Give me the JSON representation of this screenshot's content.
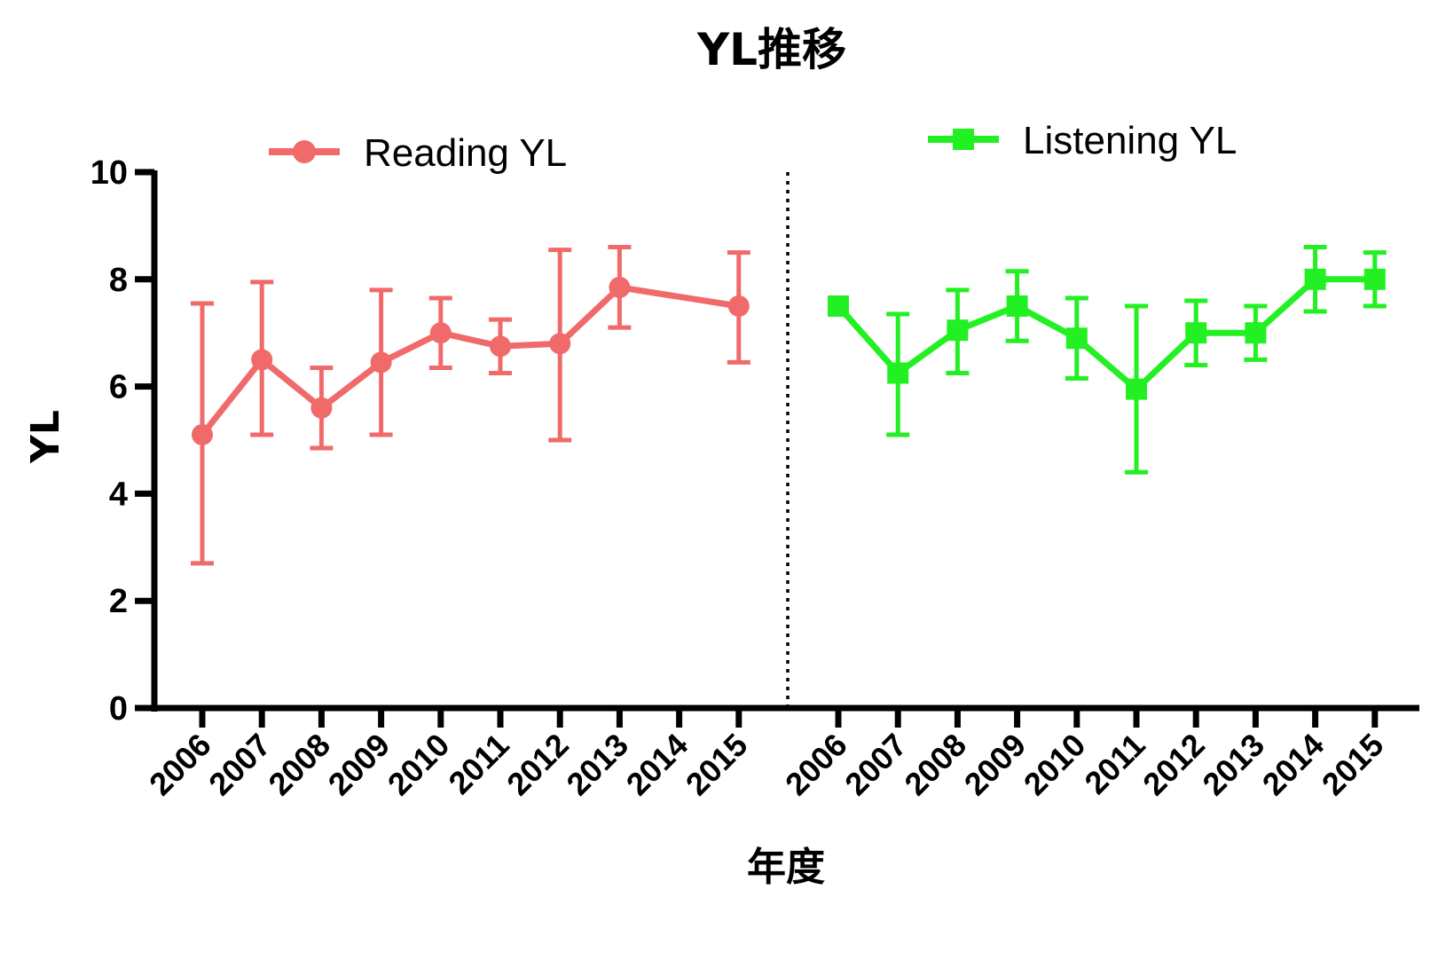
{
  "chart_data": {
    "type": "line",
    "title": "YL推移",
    "xlabel": "年度",
    "ylabel": "YL",
    "ylim": [
      0,
      10
    ],
    "yticks": [
      0,
      2,
      4,
      6,
      8,
      10
    ],
    "grid": false,
    "error_bars": true,
    "divider": "dotted",
    "legend_placement": "top",
    "categories": [
      "2006",
      "2007",
      "2008",
      "2009",
      "2010",
      "2011",
      "2012",
      "2013",
      "2014",
      "2015"
    ],
    "series": [
      {
        "name": "Reading YL",
        "color": "#f16a6a",
        "marker": "circle",
        "panel": "left",
        "values": [
          5.1,
          6.5,
          5.6,
          6.45,
          7.0,
          6.75,
          6.8,
          7.85,
          null,
          7.5
        ],
        "err_low": [
          2.7,
          5.1,
          4.85,
          5.1,
          6.35,
          6.25,
          5.0,
          7.1,
          null,
          6.45
        ],
        "err_high": [
          7.55,
          7.95,
          6.35,
          7.8,
          7.65,
          7.25,
          8.55,
          8.6,
          null,
          8.5
        ]
      },
      {
        "name": "Listening YL",
        "color": "#22f022",
        "marker": "square",
        "panel": "right",
        "values": [
          7.5,
          6.25,
          7.05,
          7.5,
          6.9,
          5.95,
          7.0,
          7.0,
          8.0,
          8.0
        ],
        "err_low": [
          null,
          5.1,
          6.25,
          6.85,
          6.15,
          4.4,
          6.4,
          6.5,
          7.4,
          7.5
        ],
        "err_high": [
          null,
          7.35,
          7.8,
          8.15,
          7.65,
          7.5,
          7.6,
          7.5,
          8.6,
          8.5
        ]
      }
    ]
  }
}
